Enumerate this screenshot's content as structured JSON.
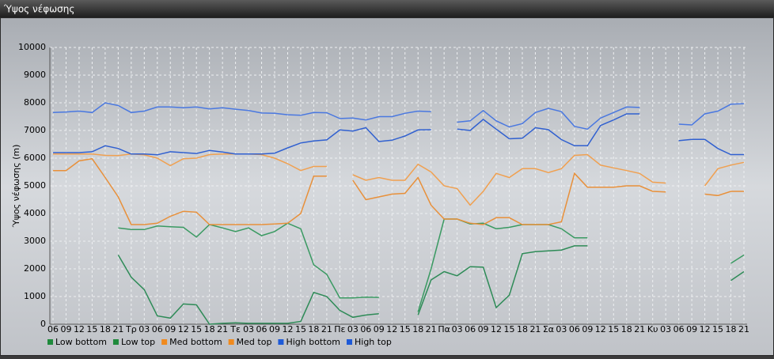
{
  "chart_data": {
    "type": "line",
    "title": "Ύψος νέφωσης",
    "y_label": "Ύψος νέφωσης (m)",
    "categories": [
      "06",
      "09",
      "12",
      "15",
      "18",
      "21",
      "Τρ",
      "03",
      "06",
      "09",
      "12",
      "15",
      "18",
      "21",
      "Τε",
      "03",
      "06",
      "09",
      "12",
      "15",
      "18",
      "21",
      "Πε",
      "03",
      "06",
      "09",
      "12",
      "15",
      "18",
      "21",
      "Πα",
      "03",
      "06",
      "09",
      "12",
      "15",
      "18",
      "21",
      "Σα",
      "03",
      "06",
      "09",
      "12",
      "15",
      "18",
      "21",
      "Κυ",
      "03",
      "06",
      "09",
      "12",
      "15",
      "18",
      "21"
    ],
    "ylim": [
      0,
      10000
    ],
    "yticks": [
      0,
      1000,
      2000,
      3000,
      4000,
      5000,
      6000,
      7000,
      8000,
      9000,
      10000
    ],
    "grid": true,
    "legend": "bottom",
    "series": [
      {
        "name": "Low bottom",
        "color": "#2e8b57",
        "legend_color": "#1f8a3c",
        "values": [
          null,
          null,
          null,
          null,
          null,
          2500,
          1700,
          1250,
          300,
          220,
          730,
          700,
          0,
          30,
          50,
          30,
          30,
          30,
          30,
          100,
          1150,
          1000,
          500,
          250,
          330,
          380,
          null,
          null,
          330,
          1600,
          1900,
          1750,
          2080,
          2060,
          600,
          1050,
          2550,
          2620,
          2650,
          2680,
          2830,
          2830,
          null,
          null,
          null,
          null,
          null,
          null,
          null,
          null,
          null,
          null,
          1580,
          1900
        ]
      },
      {
        "name": "Low top",
        "color": "#3a9a62",
        "legend_color": "#1f8a3c",
        "values": [
          null,
          null,
          null,
          null,
          null,
          3480,
          3420,
          3420,
          3550,
          3520,
          3500,
          3150,
          3600,
          3480,
          3350,
          3480,
          3200,
          3350,
          3650,
          3450,
          2150,
          1800,
          950,
          950,
          980,
          970,
          null,
          null,
          450,
          2000,
          3800,
          3800,
          3620,
          3650,
          3450,
          3500,
          3600,
          3600,
          3600,
          3450,
          3120,
          3120,
          null,
          null,
          null,
          null,
          null,
          null,
          null,
          null,
          null,
          null,
          2200,
          2500
        ]
      },
      {
        "name": "Med bottom",
        "color": "#e8903a",
        "legend_color": "#f08a1e",
        "values": [
          5550,
          5550,
          5900,
          5980,
          5300,
          4600,
          3600,
          3600,
          3650,
          3900,
          4080,
          4050,
          3600,
          3600,
          3600,
          3600,
          3600,
          3620,
          3650,
          4000,
          5350,
          5350,
          null,
          5200,
          4500,
          4600,
          4700,
          4730,
          5300,
          4300,
          3800,
          3800,
          3650,
          3600,
          3850,
          3850,
          3600,
          3600,
          3600,
          3700,
          5450,
          4950,
          4950,
          4950,
          5000,
          5000,
          4800,
          4780,
          null,
          null,
          4700,
          4650,
          4800,
          4800
        ]
      },
      {
        "name": "Med top",
        "color": "#f0a050",
        "legend_color": "#f08a1e",
        "values": [
          6150,
          6150,
          6150,
          6150,
          6100,
          6090,
          6150,
          6120,
          6000,
          5730,
          5980,
          6000,
          6130,
          6150,
          6150,
          6150,
          6130,
          6000,
          5800,
          5550,
          5700,
          5700,
          null,
          5400,
          5200,
          5300,
          5200,
          5200,
          5780,
          5500,
          5000,
          4900,
          4300,
          4800,
          5450,
          5300,
          5620,
          5620,
          5480,
          5620,
          6100,
          6130,
          5750,
          5650,
          5550,
          5450,
          5130,
          5100,
          null,
          null,
          5000,
          5620,
          5750,
          5850
        ]
      },
      {
        "name": "High bottom",
        "color": "#3060d0",
        "legend_color": "#1e5ad8",
        "values": [
          6200,
          6200,
          6200,
          6230,
          6450,
          6350,
          6150,
          6150,
          6120,
          6230,
          6200,
          6170,
          6280,
          6220,
          6150,
          6150,
          6150,
          6180,
          6370,
          6550,
          6620,
          6660,
          7020,
          6980,
          7100,
          6600,
          6650,
          6800,
          7020,
          7030,
          null,
          7050,
          7000,
          7400,
          7050,
          6700,
          6720,
          7100,
          7030,
          6670,
          6450,
          6450,
          7180,
          7380,
          7600,
          7600,
          null,
          null,
          6630,
          6680,
          6680,
          6350,
          6130,
          6130
        ]
      },
      {
        "name": "High top",
        "color": "#4a78e0",
        "legend_color": "#1e5ad8",
        "values": [
          7650,
          7670,
          7700,
          7650,
          8000,
          7900,
          7650,
          7700,
          7850,
          7850,
          7820,
          7850,
          7780,
          7820,
          7770,
          7720,
          7630,
          7620,
          7570,
          7550,
          7650,
          7640,
          7430,
          7450,
          7380,
          7500,
          7500,
          7620,
          7700,
          7680,
          null,
          7300,
          7350,
          7720,
          7350,
          7130,
          7250,
          7650,
          7800,
          7680,
          7150,
          7050,
          7450,
          7650,
          7850,
          7830,
          null,
          null,
          7230,
          7200,
          7600,
          7700,
          7950,
          7970
        ]
      }
    ]
  }
}
